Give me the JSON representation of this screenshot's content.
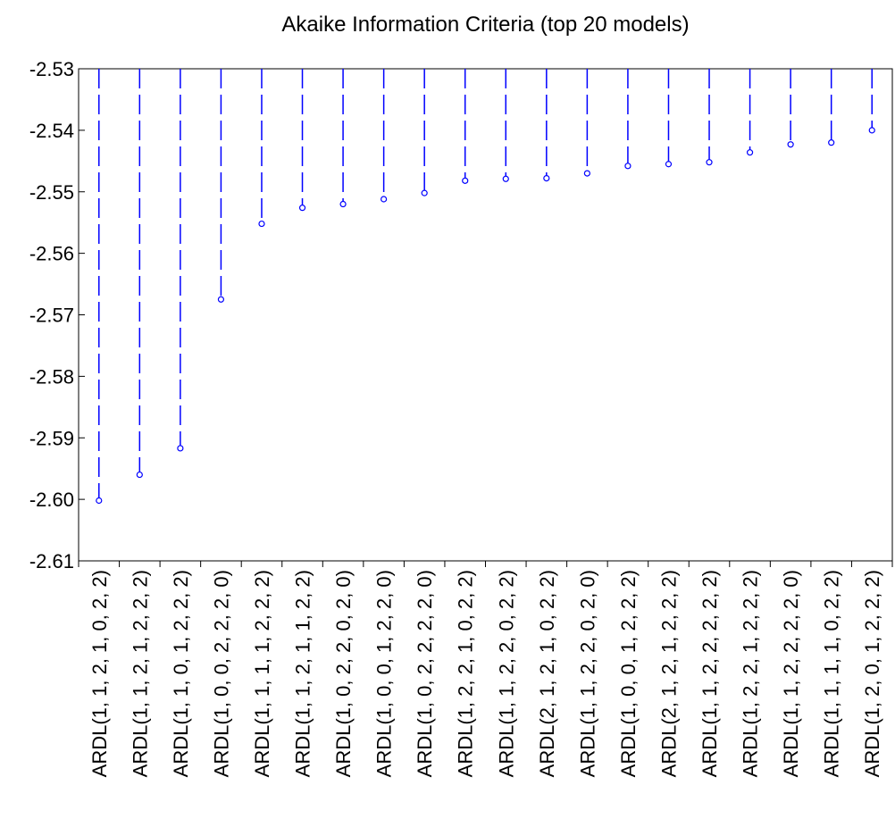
{
  "chart_data": {
    "type": "scatter",
    "title": "Akaike Information Criteria (top 20 models)",
    "xlabel": "",
    "ylabel": "",
    "ylim": [
      -2.61,
      -2.53
    ],
    "yticks": [
      "-2.53",
      "-2.54",
      "-2.55",
      "-2.56",
      "-2.57",
      "-2.58",
      "-2.59",
      "-2.60",
      "-2.61"
    ],
    "grid": false,
    "legend": "none",
    "style": "dashed drop-lines from top of plot to hollow circle markers",
    "color": "#0000ff",
    "categories": [
      "ARDL(1, 1, 2, 1, 0, 2, 2)",
      "ARDL(1, 1, 2, 1, 2, 2, 2)",
      "ARDL(1, 1, 0, 1, 2, 2, 2)",
      "ARDL(1, 0, 0, 2, 2, 2, 0)",
      "ARDL(1, 1, 1, 1, 2, 2, 2)",
      "ARDL(1, 1, 2, 1, 1, 2, 2)",
      "ARDL(1, 0, 2, 2, 0, 2, 0)",
      "ARDL(1, 0, 0, 1, 2, 2, 0)",
      "ARDL(1, 0, 2, 2, 2, 2, 0)",
      "ARDL(1, 2, 2, 1, 0, 2, 2)",
      "ARDL(1, 1, 2, 2, 0, 2, 2)",
      "ARDL(2, 1, 2, 1, 0, 2, 2)",
      "ARDL(1, 1, 2, 2, 0, 2, 0)",
      "ARDL(1, 0, 0, 1, 2, 2, 2)",
      "ARDL(2, 1, 2, 1, 2, 2, 2)",
      "ARDL(1, 1, 2, 2, 2, 2, 2)",
      "ARDL(1, 2, 2, 1, 2, 2, 2)",
      "ARDL(1, 1, 2, 2, 2, 2, 0)",
      "ARDL(1, 1, 1, 1, 0, 2, 2)",
      "ARDL(1, 2, 0, 1, 2, 2, 2)"
    ],
    "values": [
      -2.6002,
      -2.596,
      -2.5917,
      -2.5675,
      -2.5552,
      -2.5526,
      -2.552,
      -2.5512,
      -2.5502,
      -2.5482,
      -2.5479,
      -2.5478,
      -2.547,
      -2.5458,
      -2.5455,
      -2.5452,
      -2.5436,
      -2.5423,
      -2.542,
      -2.54
    ]
  }
}
